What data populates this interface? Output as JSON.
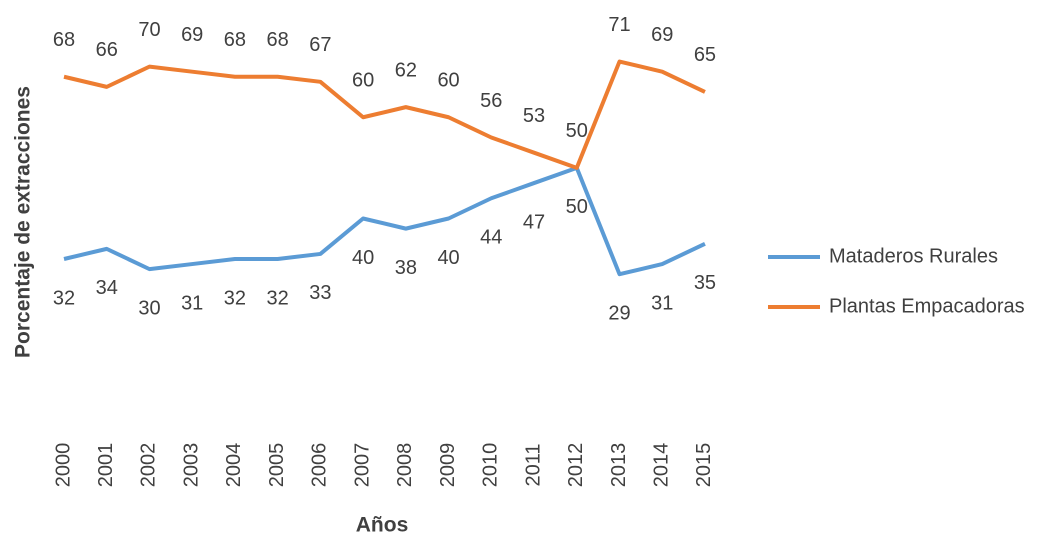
{
  "chart_data": {
    "type": "line",
    "y_label": "Porcentaje de extracciones",
    "x_label": "Años",
    "categories": [
      "2000",
      "2001",
      "2002",
      "2003",
      "2004",
      "2005",
      "2006",
      "2007",
      "2008",
      "2009",
      "2010",
      "2011",
      "2012",
      "2013",
      "2014",
      "2015"
    ],
    "series": [
      {
        "name": "Mataderos Rurales",
        "color": "#5b9bd5",
        "values": [
          32,
          34,
          30,
          31,
          32,
          32,
          33,
          40,
          38,
          40,
          44,
          47,
          50,
          29,
          31,
          35
        ]
      },
      {
        "name": "Plantas Empacadoras",
        "color": "#ed7d31",
        "values": [
          68,
          66,
          70,
          69,
          68,
          68,
          67,
          60,
          62,
          60,
          56,
          53,
          50,
          71,
          69,
          65
        ]
      }
    ],
    "ylim": [
      0,
      80
    ],
    "legend": "right",
    "grid": false
  }
}
